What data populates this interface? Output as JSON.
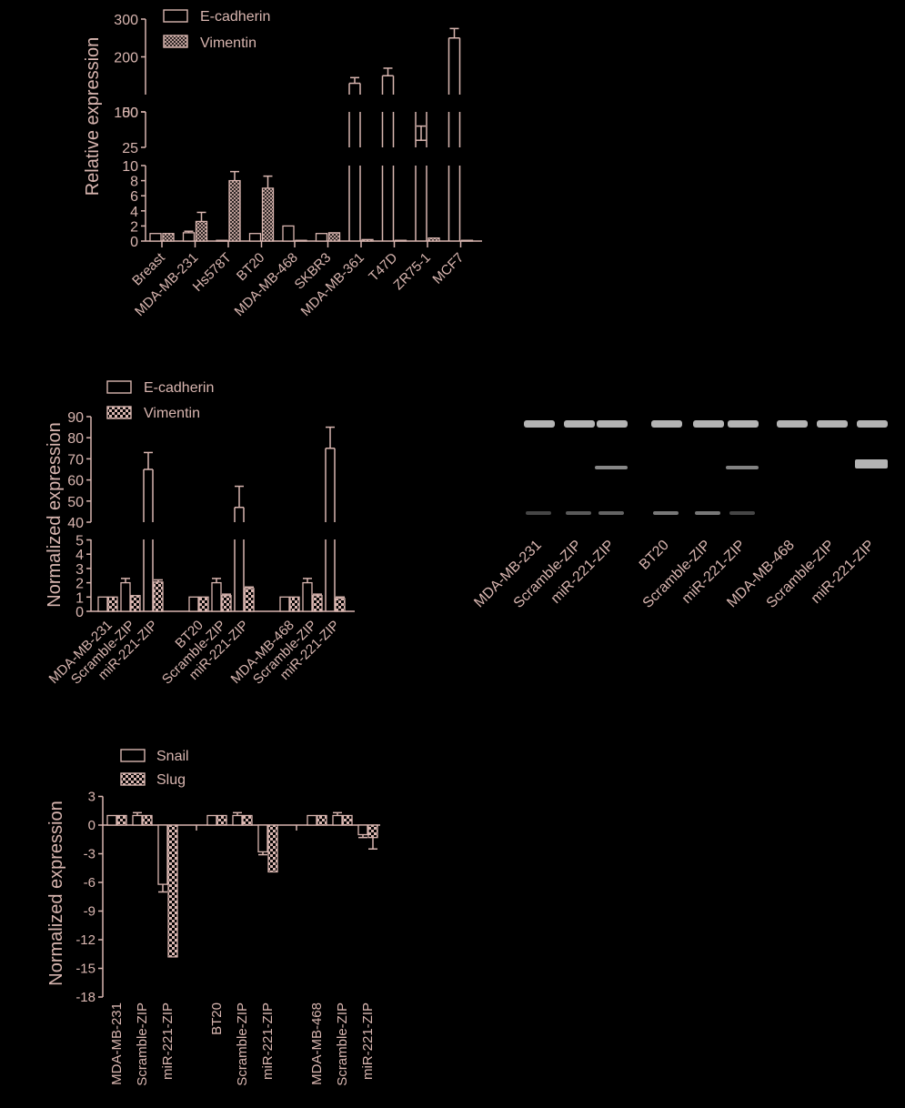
{
  "colors": {
    "background": "#000000",
    "axis": "#d9b6b0",
    "text": "#d9b6b0",
    "band": "#c8c8c8"
  },
  "chart_data": [
    {
      "type": "bar",
      "panel": "A",
      "ylabel": "Relative expression",
      "categories": [
        "Breast",
        "MDA-MB-231",
        "Hs578T",
        "BT20",
        "MDA-MB-468",
        "SKBR3",
        "MDA-MB-361",
        "T47D",
        "ZR75-1",
        "MCF7"
      ],
      "series": [
        {
          "name": "E-cadherin",
          "pattern": "open",
          "values": [
            1,
            1.1,
            0.05,
            1,
            2,
            1,
            130,
            150,
            30,
            250
          ],
          "errors": [
            0,
            0.2,
            0,
            0,
            0,
            0,
            15,
            20,
            10,
            25
          ]
        },
        {
          "name": "Vimentin",
          "pattern": "hatch",
          "values": [
            1,
            2.6,
            8,
            7,
            0.05,
            1.1,
            0.2,
            0.1,
            0.4,
            0.1
          ],
          "errors": [
            0,
            1.2,
            1.2,
            1.6,
            0,
            0,
            0,
            0,
            0,
            0
          ]
        }
      ],
      "broken_axis_ticks": [
        {
          "segment": "0-10",
          "ticks": [
            "0",
            "2",
            "4",
            "6",
            "8",
            "10"
          ]
        },
        {
          "segment": "25-50",
          "ticks": [
            "25",
            "50"
          ]
        },
        {
          "segment": "100-300",
          "ticks": [
            "100",
            "200",
            "300"
          ]
        }
      ],
      "legend": "top-left"
    },
    {
      "type": "bar",
      "panel": "B",
      "ylabel": "Normalized expression",
      "categories": [
        "MDA-MB-231",
        "Scramble-ZIP",
        "miR-221-ZIP",
        "BT20",
        "Scramble-ZIP",
        "miR-221-ZIP",
        "MDA-MB-468",
        "Scramble-ZIP",
        "miR-221-ZIP"
      ],
      "series": [
        {
          "name": "E-cadherin",
          "pattern": "open",
          "values": [
            1,
            2,
            65,
            1,
            2,
            47,
            1,
            2,
            75
          ],
          "errors": [
            0,
            0.3,
            8,
            0,
            0.3,
            10,
            0,
            0.3,
            10
          ]
        },
        {
          "name": "Vimentin",
          "pattern": "check",
          "values": [
            1,
            1.1,
            2.05,
            1,
            1.1,
            1.6,
            1,
            1.1,
            0.9
          ],
          "errors": [
            0,
            0,
            0.15,
            0,
            0.1,
            0.1,
            0,
            0.1,
            0.1
          ]
        }
      ],
      "broken_axis_ticks": [
        {
          "segment": "0-5",
          "ticks": [
            "0",
            "1",
            "2",
            "3",
            "4",
            "5"
          ]
        },
        {
          "segment": "40-90",
          "ticks": [
            "40",
            "50",
            "60",
            "70",
            "80",
            "90"
          ]
        }
      ],
      "legend": "top-left"
    },
    {
      "type": "bar",
      "panel": "C",
      "ylabel": "Normalized expression",
      "categories": [
        "MDA-MB-231",
        "Scramble-ZIP",
        "miR-221-ZIP",
        "BT20",
        "Scramble-ZIP",
        "miR-221-ZIP",
        "MDA-MB-468",
        "Scramble-ZIP",
        "miR-221-ZIP"
      ],
      "series": [
        {
          "name": "Snail",
          "pattern": "open",
          "values": [
            1,
            1,
            -6.2,
            1,
            1,
            -2.8,
            1,
            1,
            -1
          ],
          "errors": [
            0,
            0.3,
            0.8,
            0,
            0.3,
            0.3,
            0,
            0.3,
            0.3
          ]
        },
        {
          "name": "Slug",
          "pattern": "check",
          "values": [
            1,
            1,
            -13.8,
            1,
            1,
            -4.9,
            1,
            1,
            -1.3
          ],
          "errors": [
            0,
            0,
            0,
            0,
            0,
            0,
            0,
            0,
            1.2
          ]
        }
      ],
      "ylim": [
        -18,
        3
      ],
      "yticks": [
        "3",
        "0",
        "-3",
        "-6",
        "-9",
        "-12",
        "-15",
        "-18"
      ],
      "legend": "top-left"
    }
  ],
  "blot": {
    "lanes": [
      "MDA-MB-231",
      "Scramble-ZIP",
      "miR-221-ZIP",
      "BT20",
      "Scramble-ZIP",
      "miR-221-ZIP",
      "MDA-MB-468",
      "Scramble-ZIP",
      "miR-221-ZIP"
    ],
    "middle_band_intensity": [
      0,
      0,
      0.55,
      0,
      0,
      0.5,
      0,
      0,
      1
    ],
    "lower_band_intensity": [
      0.35,
      0.45,
      0.5,
      0.6,
      0.6,
      0.35,
      0,
      0,
      0
    ]
  }
}
